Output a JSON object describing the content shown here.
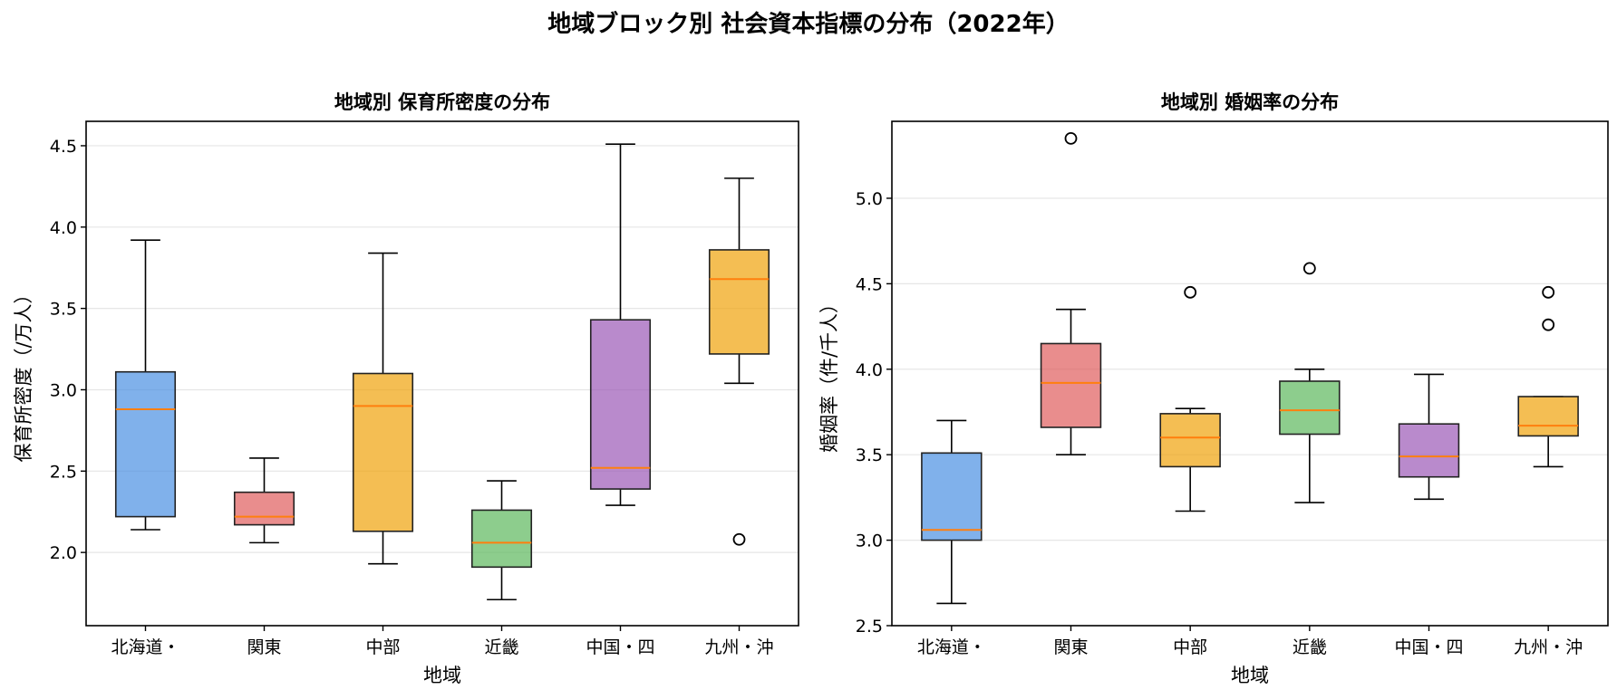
{
  "figure_title": "地域ブロック別 社会資本指標の分布（2022年）",
  "colors": {
    "boxes": [
      "#4a90e2",
      "#e05c5c",
      "#f0a30a",
      "#5cb85c",
      "#9b59b6",
      "#f0a30a"
    ],
    "median": "#ff7f0e",
    "grid": "#e6e6e6"
  },
  "chart_data": [
    {
      "type": "box",
      "title": "地域別 保育所密度の分布",
      "xlabel": "地域",
      "ylabel": "保育所密度（/万人）",
      "ylim": [
        1.55,
        4.65
      ],
      "yticks": [
        2.0,
        2.5,
        3.0,
        3.5,
        4.0,
        4.5
      ],
      "ytick_labels": [
        "2.0",
        "2.5",
        "3.0",
        "3.5",
        "4.0",
        "4.5"
      ],
      "categories": [
        "北海道・",
        "関東",
        "中部",
        "近畿",
        "中国・四",
        "九州・沖"
      ],
      "grid": "y",
      "boxes": [
        {
          "whisker_low": 2.14,
          "q1": 2.22,
          "median": 2.88,
          "q3": 3.11,
          "whisker_high": 3.92,
          "outliers": []
        },
        {
          "whisker_low": 2.06,
          "q1": 2.17,
          "median": 2.22,
          "q3": 2.37,
          "whisker_high": 2.58,
          "outliers": []
        },
        {
          "whisker_low": 1.93,
          "q1": 2.13,
          "median": 2.9,
          "q3": 3.1,
          "whisker_high": 3.84,
          "outliers": []
        },
        {
          "whisker_low": 1.71,
          "q1": 1.91,
          "median": 2.06,
          "q3": 2.26,
          "whisker_high": 2.44,
          "outliers": []
        },
        {
          "whisker_low": 2.29,
          "q1": 2.39,
          "median": 2.52,
          "q3": 3.43,
          "whisker_high": 4.51,
          "outliers": []
        },
        {
          "whisker_low": 3.04,
          "q1": 3.22,
          "median": 3.68,
          "q3": 3.86,
          "whisker_high": 4.3,
          "outliers": [
            2.08
          ]
        }
      ]
    },
    {
      "type": "box",
      "title": "地域別 婚姻率の分布",
      "xlabel": "地域",
      "ylabel": "婚姻率（件/千人）",
      "ylim": [
        2.5,
        5.45
      ],
      "yticks": [
        2.5,
        3.0,
        3.5,
        4.0,
        4.5,
        5.0
      ],
      "ytick_labels": [
        "2.5",
        "3.0",
        "3.5",
        "4.0",
        "4.5",
        "5.0"
      ],
      "categories": [
        "北海道・",
        "関東",
        "中部",
        "近畿",
        "中国・四",
        "九州・沖"
      ],
      "grid": "y",
      "boxes": [
        {
          "whisker_low": 2.63,
          "q1": 3.0,
          "median": 3.06,
          "q3": 3.51,
          "whisker_high": 3.7,
          "outliers": []
        },
        {
          "whisker_low": 3.5,
          "q1": 3.66,
          "median": 3.92,
          "q3": 4.15,
          "whisker_high": 4.35,
          "outliers": [
            5.35
          ]
        },
        {
          "whisker_low": 3.17,
          "q1": 3.43,
          "median": 3.6,
          "q3": 3.74,
          "whisker_high": 3.77,
          "outliers": [
            4.45
          ]
        },
        {
          "whisker_low": 3.22,
          "q1": 3.62,
          "median": 3.76,
          "q3": 3.93,
          "whisker_high": 4.0,
          "outliers": [
            4.59
          ]
        },
        {
          "whisker_low": 3.24,
          "q1": 3.37,
          "median": 3.49,
          "q3": 3.68,
          "whisker_high": 3.97,
          "outliers": []
        },
        {
          "whisker_low": 3.43,
          "q1": 3.61,
          "median": 3.67,
          "q3": 3.84,
          "whisker_high": 3.84,
          "outliers": [
            4.26,
            4.45
          ]
        }
      ]
    }
  ]
}
